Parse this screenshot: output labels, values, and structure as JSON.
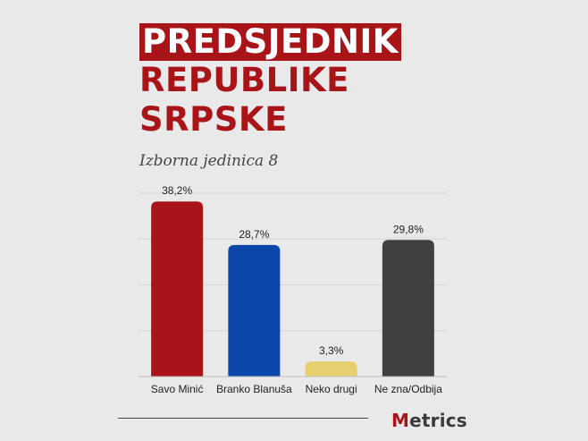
{
  "title": {
    "line1": "PREDSJEDNIK",
    "line2": "REPUBLIKE",
    "line3": "SRPSKE"
  },
  "subtitle": "Izborna jedinica 8",
  "logo": {
    "first_letter": "M",
    "rest": "etrics"
  },
  "colors": {
    "brand": "#a81418",
    "background": "#e9e9e9"
  },
  "chart_data": {
    "type": "bar",
    "categories": [
      "Savo Minić",
      "Branko Blanuša",
      "Neko drugi",
      "Ne zna/Odbija"
    ],
    "values": [
      38.2,
      28.7,
      3.3,
      29.8
    ],
    "value_labels": [
      "38,2%",
      "28,7%",
      "3,3%",
      "29,8%"
    ],
    "colors": [
      "#a81418",
      "#0a47a9",
      "#e6cf6e",
      "#404040"
    ],
    "ylim": [
      0,
      40
    ],
    "grid": true,
    "legend": "none"
  }
}
